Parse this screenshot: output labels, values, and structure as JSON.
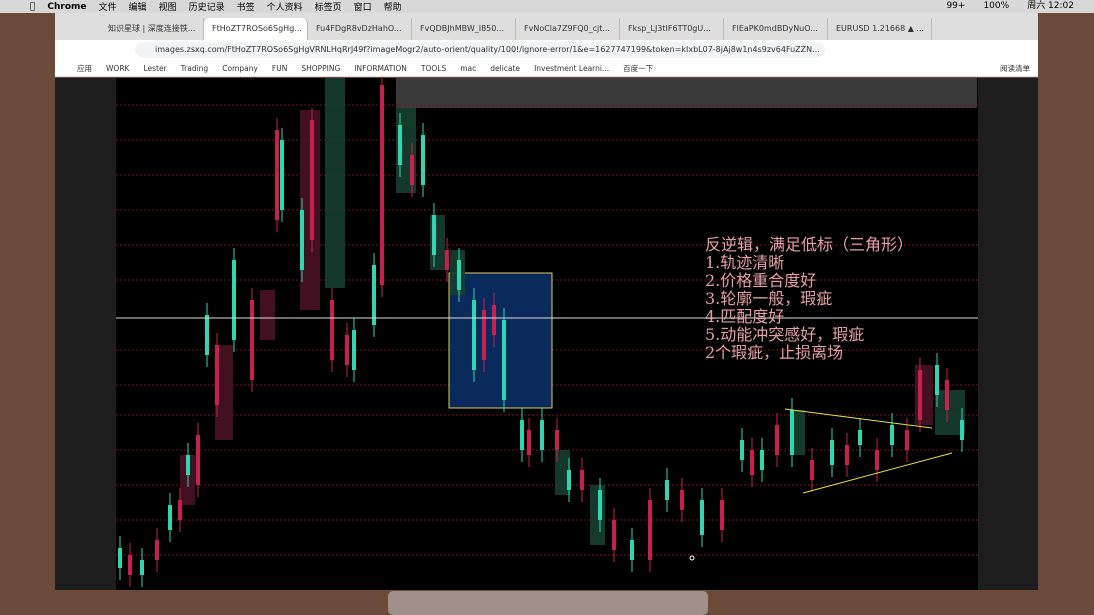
{
  "menubar": {
    "app": "Chrome",
    "items": [
      "文件",
      "编辑",
      "视图",
      "历史记录",
      "书签",
      "个人资料",
      "标签页",
      "窗口",
      "帮助"
    ],
    "status": [
      "99+",
      "100%",
      "周六 12:02"
    ]
  },
  "tabs": [
    "知识星球 | 深度连接铁...",
    "FtHoZT7ROSo6SgHg...",
    "Fu4FDgR8vDzHahO...",
    "FvQDBJhMBW_I850...",
    "FvNoCla7Z9FQ0_cjt...",
    "Fksp_LJ3tIF6TT0gU...",
    "FlEaPK0mdBDyNuO...",
    "EURUSD 1.21668 ▲ ..."
  ],
  "address": "images.zsxq.com/FtHoZT7ROSo6SgHgVRNLHqRrJ49f?imageMogr2/auto-orient/quality/100!/ignore-error/1&e=1627747199&token=kIxbL07-8jAj8w1n4s9zv64FuZZN...",
  "bookmarks": [
    "应用",
    "WORK",
    "Lester",
    "Trading",
    "Company",
    "FUN",
    "SHOPPING",
    "INFORMATION",
    "TOOLS",
    "mac",
    "delicate",
    "Investment Learni...",
    "百度一下"
  ],
  "reading_list": "阅读清单",
  "annotation": {
    "lines": [
      "反逆辑，满足低标（三角形）",
      "1.轨迹清晰",
      "2.价格重合度好",
      "3.轮廓一般，瑕疵",
      "4.匹配度好",
      "5.动能冲突感好，瑕疵",
      "2个瑕疵，止损离场"
    ]
  }
}
